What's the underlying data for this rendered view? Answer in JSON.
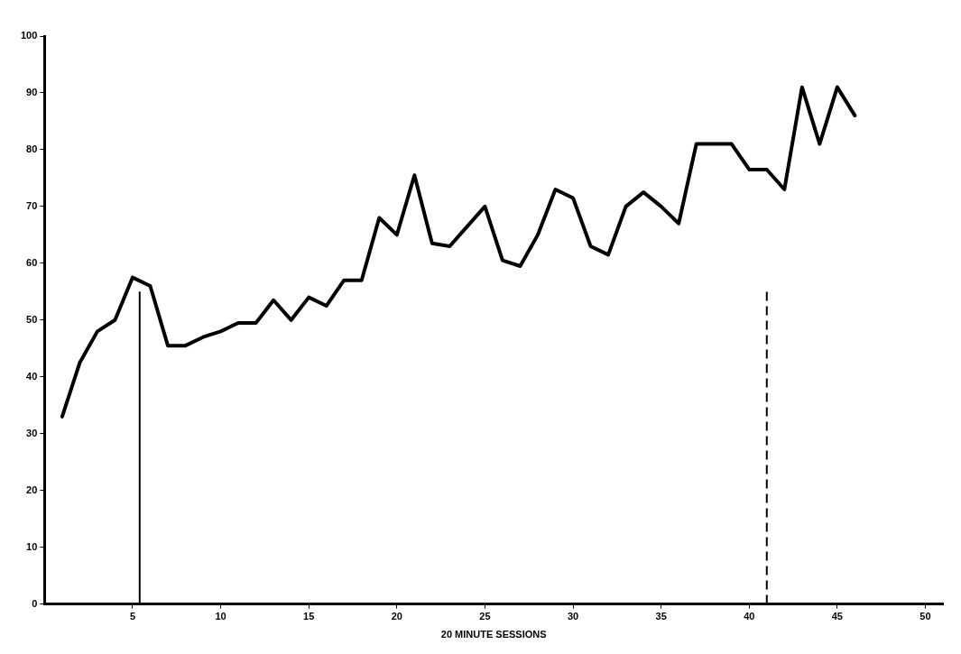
{
  "chart_data": {
    "type": "line",
    "xlabel": "20 MINUTE SESSIONS",
    "x": [
      1,
      2,
      3,
      4,
      5,
      6,
      7,
      8,
      9,
      10,
      11,
      12,
      13,
      14,
      15,
      16,
      17,
      18,
      19,
      20,
      21,
      22,
      23,
      24,
      25,
      26,
      27,
      28,
      29,
      30,
      31,
      32,
      33,
      34,
      35,
      36,
      37,
      38,
      39,
      40,
      41,
      42,
      43,
      44,
      45,
      46
    ],
    "series": [
      {
        "color": "#000000",
        "values": [
          33,
          42.5,
          48,
          50,
          57.5,
          56,
          45.5,
          45.5,
          47,
          48,
          49.5,
          49.5,
          53.5,
          50,
          54,
          52.5,
          57,
          57,
          68,
          65,
          75.5,
          63.5,
          63,
          66.5,
          70,
          60.5,
          59.5,
          65,
          73,
          71.5,
          63,
          61.5,
          70,
          72.5,
          70,
          67,
          81,
          81,
          81,
          76.5,
          76.5,
          73,
          91,
          81,
          91,
          86
        ]
      }
    ],
    "xlim": [
      0,
      51
    ],
    "xticks": [
      5,
      10,
      15,
      20,
      25,
      30,
      35,
      40,
      45,
      50
    ],
    "ylim": [
      0,
      100
    ],
    "yticks": [
      0,
      10,
      20,
      30,
      40,
      50,
      60,
      70,
      80,
      90,
      100
    ],
    "ref_lines": [
      {
        "axis": "x",
        "value": 5.4,
        "line_style": "solid",
        "color": "#000000"
      },
      {
        "axis": "x",
        "value": 41,
        "line_style": "dashed",
        "color": "#000000"
      }
    ],
    "grid": false,
    "legend": false,
    "marker": "none",
    "line_style": "solid"
  }
}
